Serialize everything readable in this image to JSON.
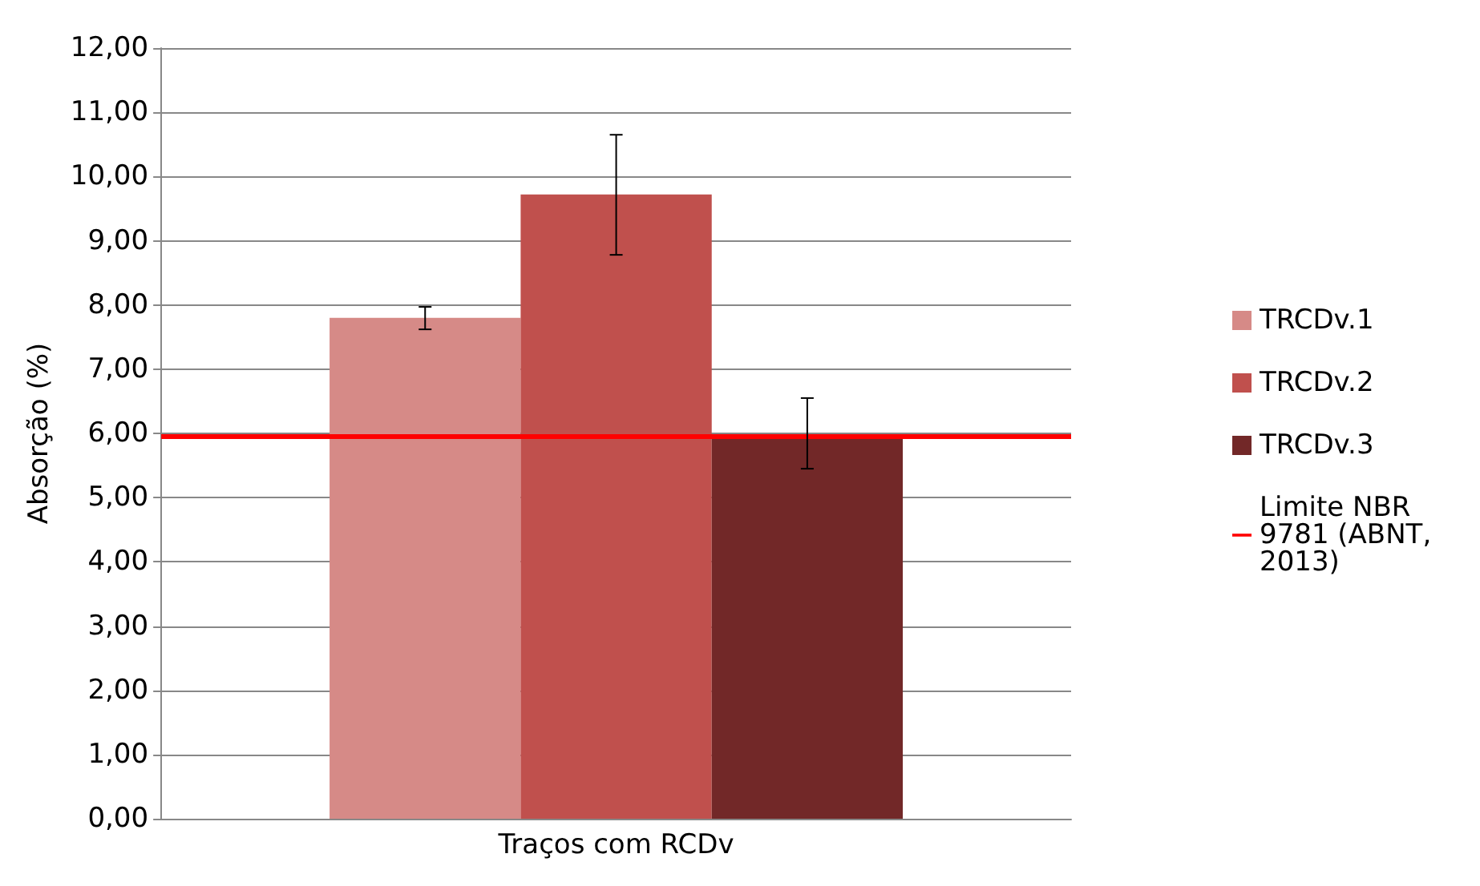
{
  "chart_data": {
    "type": "bar",
    "ylabel": "Absorção (%)",
    "categories": [
      "Traços com RCDv"
    ],
    "series": [
      {
        "name": "TRCDv.1",
        "color": "#d68a87",
        "values": [
          7.8
        ],
        "errors": [
          [
            7.62,
            7.97
          ]
        ]
      },
      {
        "name": "TRCDv.2",
        "color": "#c0504d",
        "values": [
          9.72
        ],
        "errors": [
          [
            8.78,
            10.65
          ]
        ]
      },
      {
        "name": "TRCDv.3",
        "color": "#722828",
        "values": [
          5.98
        ],
        "errors": [
          [
            5.45,
            6.55
          ]
        ]
      }
    ],
    "ref_lines": [
      {
        "axis": "y",
        "value": 5.95,
        "label": "Limite NBR 9781 (ABNT, 2013)",
        "color": "#ff0000",
        "line_style": "solid"
      }
    ],
    "ylim": [
      0,
      12
    ],
    "yticks": [
      {
        "value": 0,
        "label": "0,00"
      },
      {
        "value": 1,
        "label": "1,00"
      },
      {
        "value": 2,
        "label": "2,00"
      },
      {
        "value": 3,
        "label": "3,00"
      },
      {
        "value": 4,
        "label": "4,00"
      },
      {
        "value": 5,
        "label": "5,00"
      },
      {
        "value": 6,
        "label": "6,00"
      },
      {
        "value": 7,
        "label": "7,00"
      },
      {
        "value": 8,
        "label": "8,00"
      },
      {
        "value": 9,
        "label": "9,00"
      },
      {
        "value": 10,
        "label": "10,00"
      },
      {
        "value": 11,
        "label": "11,00"
      },
      {
        "value": 12,
        "label": "12,00"
      }
    ],
    "grid": "y",
    "legend": "right"
  }
}
